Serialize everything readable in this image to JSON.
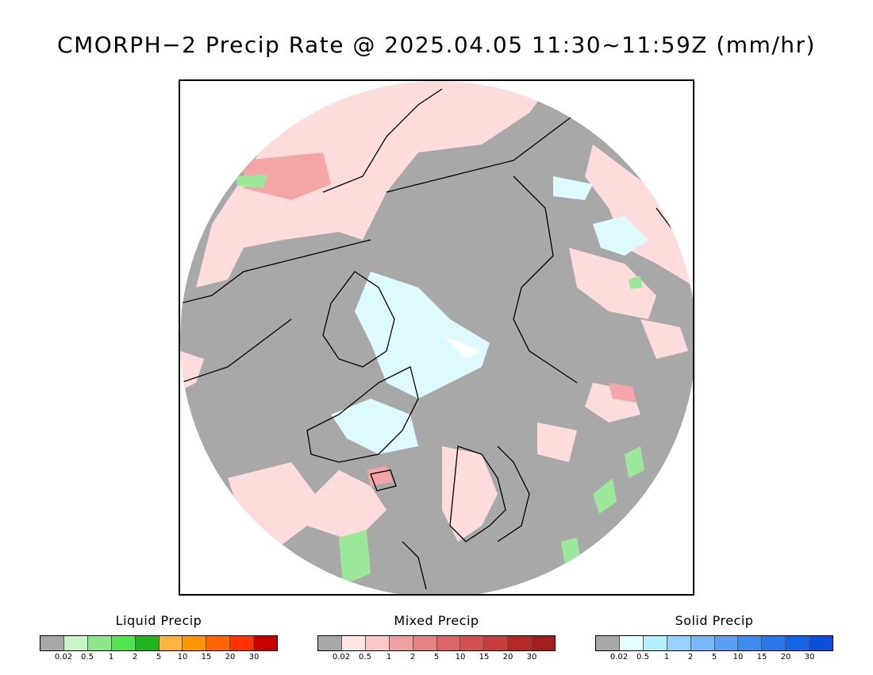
{
  "title": "CMORPH−2 Precip Rate @ 2025.04.05 11:30~11:59Z (mm/hr)",
  "map": {
    "colors": {
      "no_precip": "#a8a8a8",
      "mixed_light": "#ffdcdc",
      "mixed_moderate": "#f5a5a5",
      "solid_light": "#dcfaff",
      "liquid_light": "#9be89b",
      "coastline": "#000000"
    }
  },
  "legends": [
    {
      "title": "Liquid Precip",
      "colors": [
        "#a8a8a8",
        "#c8f5c8",
        "#8ce68c",
        "#50e650",
        "#1eb41e",
        "#ffb43c",
        "#ff9600",
        "#ff6400",
        "#ff3200",
        "#c80000"
      ],
      "ticks": [
        "0.02",
        "0.5",
        "1",
        "2",
        "5",
        "10",
        "15",
        "20",
        "30"
      ]
    },
    {
      "title": "Mixed Precip",
      "colors": [
        "#a8a8a8",
        "#ffe6e6",
        "#fac8c8",
        "#f0a0a0",
        "#e68282",
        "#dc6464",
        "#d25050",
        "#c83c3c",
        "#b42828",
        "#a01e1e"
      ],
      "ticks": [
        "0.02",
        "0.5",
        "1",
        "2",
        "5",
        "10",
        "15",
        "20",
        "30"
      ]
    },
    {
      "title": "Solid Precip",
      "colors": [
        "#a8a8a8",
        "#e6ffff",
        "#b4f0ff",
        "#96d2fa",
        "#78b9fa",
        "#5aa0f5",
        "#3c8cf0",
        "#2878eb",
        "#1464e6",
        "#0a50dc"
      ],
      "ticks": [
        "0.02",
        "0.5",
        "1",
        "2",
        "5",
        "10",
        "15",
        "20",
        "30"
      ]
    }
  ]
}
